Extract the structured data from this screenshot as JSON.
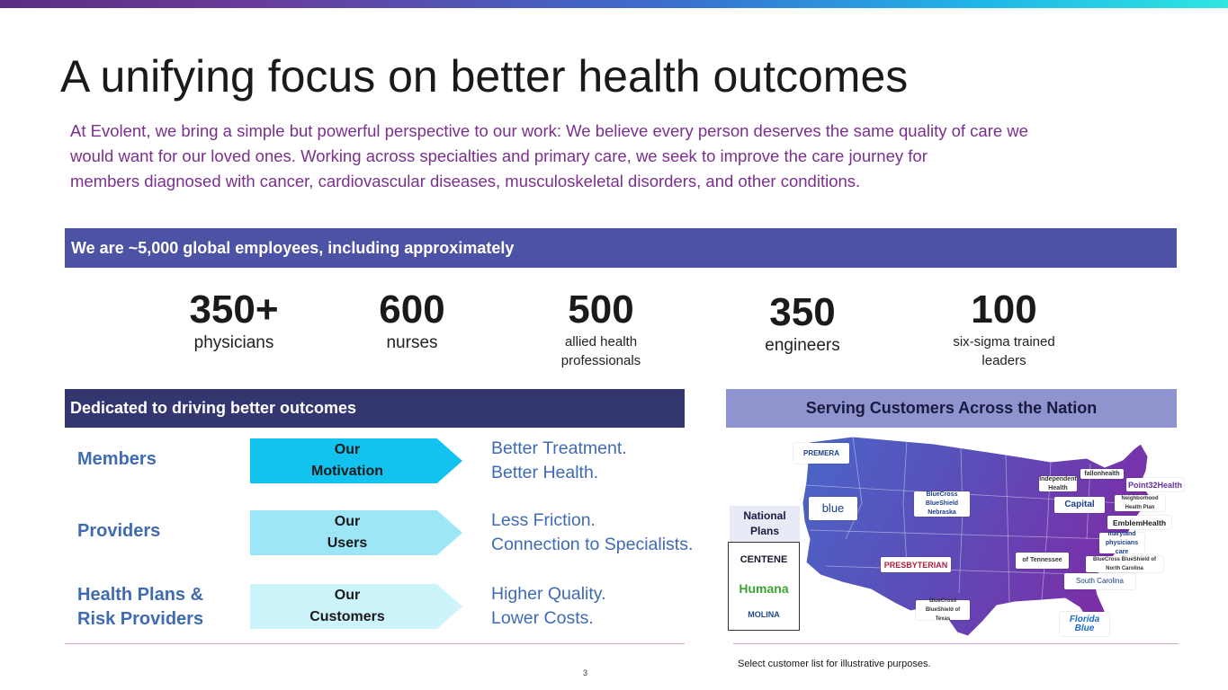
{
  "title": "A unifying focus on better health outcomes",
  "intro_lines": [
    "At Evolent, we bring a simple but powerful perspective to our work: We believe every person deserves the same quality of care we",
    "would want for our loved ones. Working across specialties and primary care, we seek to improve the care journey for",
    "members diagnosed with cancer, cardiovascular diseases, musculoskeletal disorders, and other conditions."
  ],
  "employees_banner": "We are ~5,000 global employees, including approximately",
  "stats": [
    {
      "value": "350+",
      "label_lines": [
        "physicians"
      ]
    },
    {
      "value": "600",
      "label_lines": [
        "nurses"
      ]
    },
    {
      "value": "500",
      "label_lines": [
        "allied health",
        "professionals"
      ]
    },
    {
      "value": "350",
      "label_lines": [
        "engineers"
      ]
    },
    {
      "value": "100",
      "label_lines": [
        "six-sigma trained",
        "leaders"
      ]
    }
  ],
  "outcomes_banner": "Dedicated to driving better outcomes",
  "customers_banner": "Serving Customers Across the Nation",
  "rows": [
    {
      "label_lines": [
        "Members"
      ],
      "chevron_lines": [
        "Our",
        "Motivation"
      ],
      "benefit_lines": [
        "Better Treatment.",
        "Better Health."
      ],
      "color": "#12c3ef"
    },
    {
      "label_lines": [
        "Providers"
      ],
      "chevron_lines": [
        "Our",
        "Users"
      ],
      "benefit_lines": [
        "Less Friction.",
        "Connection to Specialists."
      ],
      "color": "#9ce6f8"
    },
    {
      "label_lines": [
        "Health Plans &",
        "Risk Providers"
      ],
      "chevron_lines": [
        "Our",
        "Customers"
      ],
      "benefit_lines": [
        "Higher Quality.",
        "Lower Costs."
      ],
      "color": "#cdf3fb"
    }
  ],
  "national_plans": {
    "label_lines": [
      "National",
      "Plans"
    ],
    "logos": [
      "CENTENE",
      "Humana",
      "MOLINA"
    ]
  },
  "customer_logos": [
    "PREMERA",
    "blue",
    "BlueCross BlueShield Nebraska",
    "Independent Health",
    "fallonhealth",
    "Point32Health",
    "Capital",
    "Neighborhood Health Plan",
    "EmblemHealth",
    "maryland physicians care",
    "PRESBYTERIAN",
    "of Tennessee",
    "BlueCross BlueShield of North Carolina",
    "South Carolina",
    "BlueCross BlueShield of Texas",
    "Florida Blue"
  ],
  "footnote": "Select customer list for illustrative purposes.",
  "page_number": "3",
  "colors": {
    "accent_purple": "#7b2f8e",
    "banner_blue": "#4c52a4",
    "banner_navy": "#34366f",
    "banner_lavender": "#8f94cf",
    "label_blue": "#3f6ab4"
  }
}
